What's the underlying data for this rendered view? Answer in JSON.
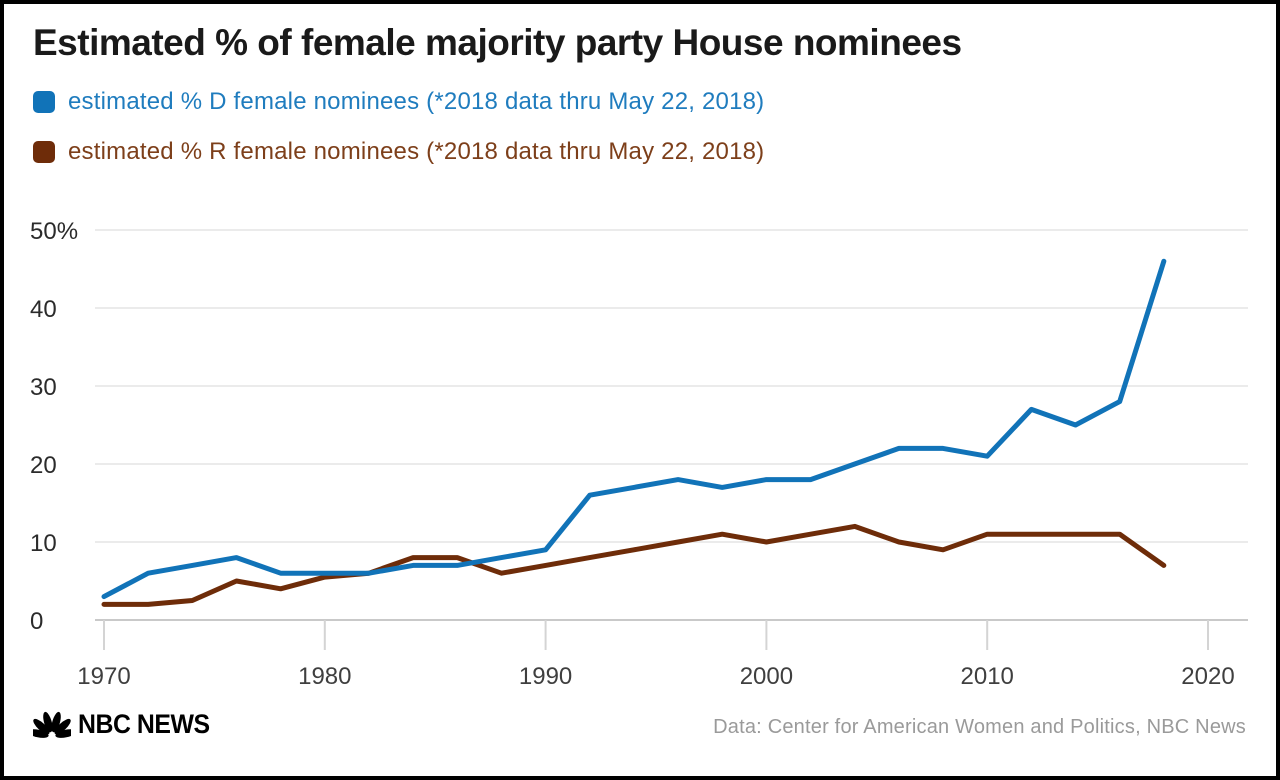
{
  "title": "Estimated % of female majority party House nominees",
  "legend": {
    "d": {
      "label": "estimated % D female nominees (*2018 data thru May 22, 2018)",
      "color": "#1173b8",
      "text_color": "#1f7cbe"
    },
    "r": {
      "label": "estimated % R female nominees (*2018 data thru May 22, 2018)",
      "color": "#6e2c09",
      "text_color": "#7d3f1a"
    }
  },
  "footer": {
    "logo_text": "NBC NEWS",
    "source": "Data: Center for American Women and Politics, NBC News"
  },
  "colors": {
    "background": "#ffffff",
    "border": "#000000",
    "grid": "#ebebeb",
    "axis_line": "#c9c9c9",
    "tick": "#d4d4d4",
    "x_tick_label": "#3f3f3f",
    "y_tick_label": "#2b2b2b",
    "title_text": "#1a1a1a",
    "footer_text": "#9a9a9a"
  },
  "chart_data": {
    "type": "line",
    "title": "Estimated % of female majority party House nominees",
    "xlabel": "",
    "ylabel": "",
    "grid": true,
    "legend_position": "top-left",
    "ylim": [
      0,
      50
    ],
    "x": [
      1970,
      1972,
      1974,
      1976,
      1978,
      1980,
      1982,
      1984,
      1986,
      1988,
      1990,
      1992,
      1994,
      1996,
      1998,
      2000,
      2002,
      2004,
      2006,
      2008,
      2010,
      2012,
      2014,
      2016,
      2018
    ],
    "series": [
      {
        "name": "estimated % D female nominees (*2018 data thru May 22, 2018)",
        "color": "#1173b8",
        "values": [
          3,
          6,
          7,
          8,
          6,
          6,
          6,
          7,
          7,
          8,
          9,
          16,
          17,
          18,
          17,
          18,
          18,
          20,
          22,
          22,
          21,
          27,
          25,
          28,
          46
        ]
      },
      {
        "name": "estimated % R female nominees (*2018 data thru May 22, 2018)",
        "color": "#6e2c09",
        "values": [
          2,
          2,
          2.5,
          5,
          4,
          5.5,
          6,
          8,
          8,
          6,
          7,
          8,
          9,
          10,
          11,
          10,
          11,
          12,
          10,
          9,
          11,
          11,
          11,
          11,
          7
        ]
      }
    ],
    "x_ticks": [
      1970,
      1980,
      1990,
      2000,
      2010,
      2020
    ],
    "y_ticks": [
      {
        "value": 0,
        "label": "0"
      },
      {
        "value": 10,
        "label": "10"
      },
      {
        "value": 20,
        "label": "20"
      },
      {
        "value": 30,
        "label": "30"
      },
      {
        "value": 40,
        "label": "40"
      },
      {
        "value": 50,
        "label": "50%"
      }
    ]
  }
}
